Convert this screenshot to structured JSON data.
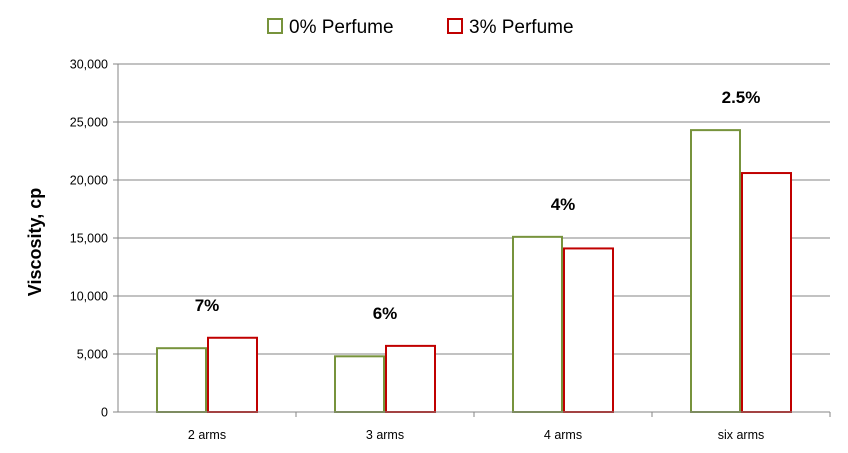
{
  "chart_data": {
    "type": "bar",
    "title": "",
    "xlabel": "",
    "ylabel": "Viscosity, cp",
    "categories": [
      "2 arms",
      "3 arms",
      "4 arms",
      "six arms"
    ],
    "series": [
      {
        "name": "0% Perfume",
        "values": [
          5500,
          4800,
          15100,
          24300
        ],
        "color": "#77933C"
      },
      {
        "name": "3% Perfume",
        "values": [
          6400,
          5700,
          14100,
          20600
        ],
        "color": "#C00000"
      }
    ],
    "annotations": [
      "7%",
      "6%",
      "4%",
      "2.5%"
    ],
    "ylim": [
      0,
      30000
    ],
    "yticks": [
      0,
      5000,
      10000,
      15000,
      20000,
      25000,
      30000
    ],
    "ytick_labels": [
      "0",
      "5,000",
      "10,000",
      "15,000",
      "20,000",
      "25,000",
      "30,000"
    ],
    "grid": true,
    "legend_position": "top-center"
  }
}
